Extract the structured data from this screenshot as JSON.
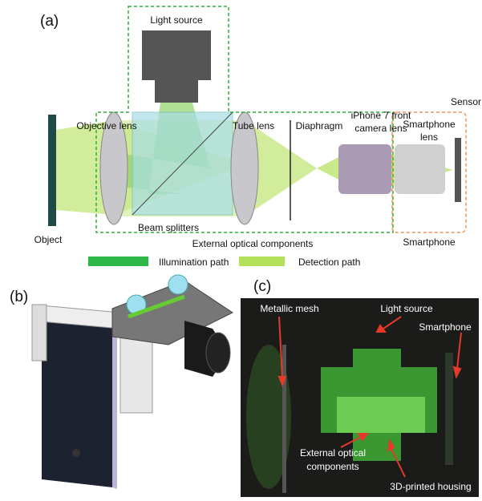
{
  "panel_a": {
    "label": "(a)",
    "light_source": "Light source",
    "objective_lens": "Objective lens",
    "tube_lens": "Tube lens",
    "diaphragm": "Diaphragm",
    "iphone_lens": [
      "iPhone 7 front",
      "camera lens"
    ],
    "sensor": "Sensor",
    "smartphone_lens": [
      "Smartphone",
      "lens"
    ],
    "object": "Object",
    "beam_splitters": "Beam splitters",
    "external_components": "External optical components",
    "smartphone": "Smartphone",
    "legend": {
      "illumination": "Illumination path",
      "detection": "Detection path"
    }
  },
  "panel_b": {
    "label": "(b)"
  },
  "panel_c": {
    "label": "(c)",
    "metallic_mesh": "Metallic mesh",
    "light_source": "Light source",
    "smartphone": "Smartphone",
    "external_components": [
      "External optical",
      "components"
    ],
    "housing": "3D-printed housing"
  }
}
